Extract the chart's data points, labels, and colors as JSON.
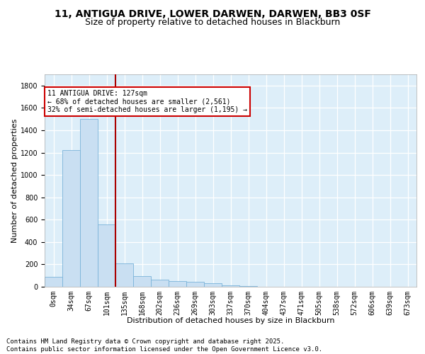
{
  "title_line1": "11, ANTIGUA DRIVE, LOWER DARWEN, DARWEN, BB3 0SF",
  "title_line2": "Size of property relative to detached houses in Blackburn",
  "xlabel": "Distribution of detached houses by size in Blackburn",
  "ylabel": "Number of detached properties",
  "bar_color": "#c9dff2",
  "bar_edge_color": "#7ab3d9",
  "background_color": "#ddeef9",
  "grid_color": "#ffffff",
  "vline_color": "#aa0000",
  "categories": [
    "0sqm",
    "34sqm",
    "67sqm",
    "101sqm",
    "135sqm",
    "168sqm",
    "202sqm",
    "236sqm",
    "269sqm",
    "303sqm",
    "337sqm",
    "370sqm",
    "404sqm",
    "437sqm",
    "471sqm",
    "505sqm",
    "538sqm",
    "572sqm",
    "606sqm",
    "639sqm",
    "673sqm"
  ],
  "values": [
    90,
    1220,
    1500,
    560,
    210,
    95,
    65,
    50,
    45,
    30,
    15,
    5,
    2,
    1,
    1,
    0,
    0,
    0,
    0,
    0,
    0
  ],
  "ylim": [
    0,
    1900
  ],
  "yticks": [
    0,
    200,
    400,
    600,
    800,
    1000,
    1200,
    1400,
    1600,
    1800
  ],
  "vline_x": 4,
  "annotation_line1": "11 ANTIGUA DRIVE: 127sqm",
  "annotation_line2": "← 68% of detached houses are smaller (2,561)",
  "annotation_line3": "32% of semi-detached houses are larger (1,195) →",
  "annotation_box_color": "#cc0000",
  "title_fontsize": 10,
  "subtitle_fontsize": 9,
  "axis_label_fontsize": 8,
  "tick_fontsize": 7,
  "footer_text": "Contains HM Land Registry data © Crown copyright and database right 2025.\nContains public sector information licensed under the Open Government Licence v3.0.",
  "footer_fontsize": 6.5
}
